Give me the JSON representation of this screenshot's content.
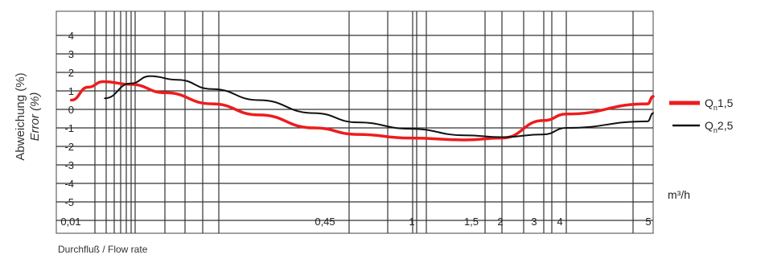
{
  "chart_data": {
    "type": "line",
    "ylabel_line1": "Abweichung (%)",
    "ylabel_line2": "Error (%)",
    "xlabel": "Durchfluß / Flow rate",
    "x_unit": "m³/h",
    "y_ticks": [
      "4",
      "3",
      "2",
      "1",
      "0",
      "-1",
      "-2",
      "-3",
      "-4",
      "-5"
    ],
    "ylim": [
      -6,
      5
    ],
    "x_tick_labels": [
      "0,01",
      "0,45",
      "1",
      "1,5",
      "2",
      "3",
      "4",
      "5"
    ],
    "grid": true,
    "legend_position": "right",
    "series": [
      {
        "name": "Qn1,5",
        "label_main": "Q",
        "label_sub": "n",
        "label_rest": "1,5",
        "color": "#ee1c1c",
        "points": [
          [
            0.0125,
            0.5
          ],
          [
            0.016,
            1.2
          ],
          [
            0.02,
            1.5
          ],
          [
            0.03,
            1.35
          ],
          [
            0.05,
            0.9
          ],
          [
            0.1,
            0.3
          ],
          [
            0.2,
            -0.3
          ],
          [
            0.45,
            -1.0
          ],
          [
            0.7,
            -1.35
          ],
          [
            1.0,
            -1.55
          ],
          [
            1.5,
            -1.65
          ],
          [
            2.0,
            -1.55
          ],
          [
            3.0,
            -0.6
          ],
          [
            4.0,
            -0.25
          ],
          [
            5.0,
            0.3
          ],
          [
            6.0,
            0.7
          ]
        ]
      },
      {
        "name": "Qn2,5",
        "label_main": "Q",
        "label_sub": "n",
        "label_rest": "2,5",
        "color": "#111111",
        "points": [
          [
            0.0205,
            0.6
          ],
          [
            0.03,
            1.4
          ],
          [
            0.04,
            1.8
          ],
          [
            0.06,
            1.6
          ],
          [
            0.1,
            1.1
          ],
          [
            0.2,
            0.5
          ],
          [
            0.45,
            -0.2
          ],
          [
            0.7,
            -0.7
          ],
          [
            1.0,
            -1.05
          ],
          [
            1.5,
            -1.4
          ],
          [
            2.0,
            -1.5
          ],
          [
            3.0,
            -1.35
          ],
          [
            4.0,
            -1.0
          ],
          [
            5.0,
            -0.65
          ],
          [
            6.0,
            -0.2
          ]
        ]
      }
    ]
  }
}
